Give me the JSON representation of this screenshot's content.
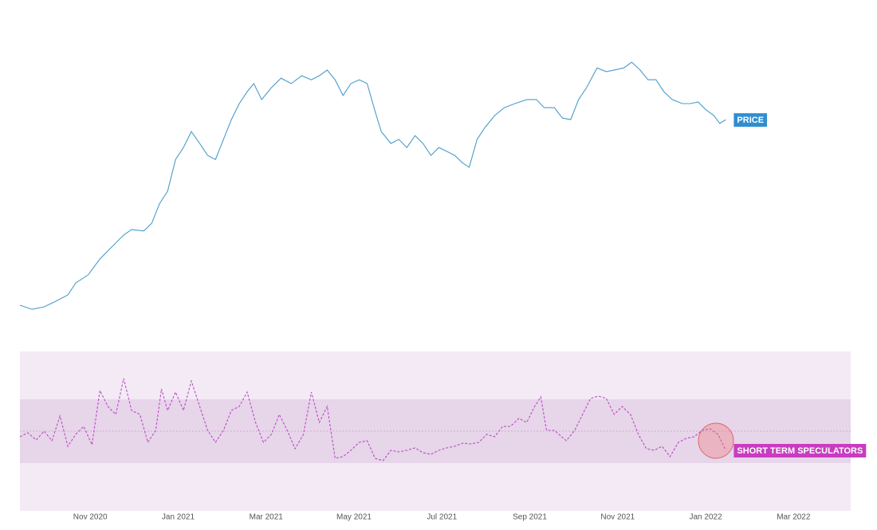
{
  "chart_data": [
    {
      "type": "line",
      "xlim": [
        -1.6,
        17.3
      ],
      "ylim": [
        0,
        100
      ],
      "series": [
        {
          "name": "PRICE",
          "color": "#4a9cc8",
          "x": [
            -1.6,
            -1.32,
            -1.05,
            -0.78,
            -0.51,
            -0.33,
            -0.05,
            0.22,
            0.49,
            0.76,
            0.94,
            1.22,
            1.4,
            1.58,
            1.76,
            1.94,
            2.12,
            2.3,
            2.49,
            2.67,
            2.85,
            3.03,
            3.21,
            3.39,
            3.57,
            3.72,
            3.9,
            4.12,
            4.34,
            4.57,
            4.81,
            5.03,
            5.21,
            5.39,
            5.57,
            5.75,
            5.93,
            6.12,
            6.3,
            6.48,
            6.62,
            6.84,
            7.02,
            7.2,
            7.39,
            7.57,
            7.75,
            7.93,
            8.11,
            8.29,
            8.48,
            8.62,
            8.8,
            8.98,
            9.2,
            9.42,
            9.66,
            9.93,
            10.15,
            10.33,
            10.56,
            10.74,
            10.93,
            11.11,
            11.29,
            11.53,
            11.74,
            11.92,
            12.14,
            12.32,
            12.51,
            12.69,
            12.87,
            13.05,
            13.24,
            13.47,
            13.65,
            13.83,
            14.01,
            14.19,
            14.32,
            14.46
          ],
          "values": [
            5,
            3.5,
            4.4,
            6.5,
            8.8,
            13.2,
            16.2,
            22.1,
            26.5,
            30.9,
            32.9,
            32.4,
            35.3,
            42.6,
            47.1,
            58.8,
            63.2,
            69.1,
            64.7,
            60.3,
            58.8,
            66.2,
            73.5,
            79.4,
            83.8,
            86.8,
            80.9,
            85.3,
            88.8,
            86.8,
            89.7,
            88.2,
            89.7,
            91.8,
            88.2,
            82.4,
            86.8,
            88.2,
            86.8,
            76.5,
            69.1,
            64.7,
            66.2,
            63.2,
            67.6,
            64.7,
            60.3,
            63.2,
            61.8,
            60.3,
            57.4,
            55.9,
            66.2,
            70.6,
            75,
            77.9,
            79.4,
            80.9,
            80.9,
            77.9,
            77.9,
            74.1,
            73.5,
            80.9,
            85.3,
            92.6,
            91.2,
            91.8,
            92.6,
            94.7,
            91.8,
            88.2,
            88.2,
            83.8,
            80.9,
            79.4,
            79.4,
            80,
            77.1,
            75,
            72.1,
            73.5
          ]
        }
      ]
    },
    {
      "type": "line",
      "xlim": [
        -1.6,
        17.3
      ],
      "ylim": [
        0,
        100
      ],
      "band": [
        30,
        70
      ],
      "midline": 50,
      "xticks": [
        {
          "value": 0,
          "label": "Nov 2020"
        },
        {
          "value": 2,
          "label": "Jan 2021"
        },
        {
          "value": 4,
          "label": "Mar 2021"
        },
        {
          "value": 6,
          "label": "May 2021"
        },
        {
          "value": 8,
          "label": "Jul 2021"
        },
        {
          "value": 10,
          "label": "Sep 2021"
        },
        {
          "value": 12,
          "label": "Nov 2021"
        },
        {
          "value": 14,
          "label": "Jan 2022"
        },
        {
          "value": 16,
          "label": "Mar 2022"
        }
      ],
      "series": [
        {
          "name": "SHORT TERM SPECULATORS",
          "color": "#b84ec0",
          "x": [
            -1.6,
            -1.42,
            -1.23,
            -1.05,
            -0.87,
            -0.69,
            -0.51,
            -0.33,
            -0.15,
            0.04,
            0.22,
            0.4,
            0.58,
            0.76,
            0.94,
            1.13,
            1.31,
            1.49,
            1.62,
            1.76,
            1.94,
            2.12,
            2.3,
            2.49,
            2.67,
            2.85,
            3.03,
            3.21,
            3.39,
            3.57,
            3.76,
            3.94,
            4.12,
            4.3,
            4.48,
            4.66,
            4.85,
            5.03,
            5.21,
            5.39,
            5.57,
            5.75,
            5.93,
            6.12,
            6.3,
            6.48,
            6.66,
            6.84,
            7.02,
            7.2,
            7.39,
            7.57,
            7.75,
            7.93,
            8.11,
            8.29,
            8.48,
            8.66,
            8.84,
            9.02,
            9.2,
            9.38,
            9.56,
            9.75,
            9.93,
            10.11,
            10.25,
            10.38,
            10.56,
            10.83,
            11.02,
            11.2,
            11.38,
            11.56,
            11.74,
            11.92,
            12.1,
            12.29,
            12.47,
            12.65,
            12.83,
            13.01,
            13.19,
            13.38,
            13.56,
            13.74,
            13.92,
            14.1,
            14.28,
            14.46
          ],
          "values": [
            46.5,
            49,
            44.5,
            50,
            44,
            59.5,
            40.5,
            48,
            53,
            41.5,
            75.5,
            65.5,
            60.5,
            83,
            63,
            60.5,
            43,
            50.5,
            76.5,
            63,
            74.5,
            63,
            81.5,
            65.5,
            50.5,
            43,
            50.5,
            63,
            65.5,
            74.5,
            55.5,
            43,
            48,
            60.5,
            50.5,
            39,
            48,
            74.5,
            55.5,
            65.5,
            33,
            34,
            38,
            43,
            44,
            33,
            31.5,
            38,
            37,
            38,
            39.5,
            36.5,
            35.5,
            38,
            39.5,
            40.5,
            42.5,
            42,
            43,
            48,
            46.5,
            53,
            53,
            58,
            55.5,
            65.5,
            71.5,
            50.5,
            50.5,
            44,
            50.5,
            60.5,
            70.5,
            72,
            70.5,
            60.5,
            65.5,
            60.5,
            48,
            39,
            38,
            40.5,
            34,
            43,
            45.5,
            46.5,
            50.5,
            51.5,
            48,
            38
          ]
        }
      ]
    }
  ]
}
